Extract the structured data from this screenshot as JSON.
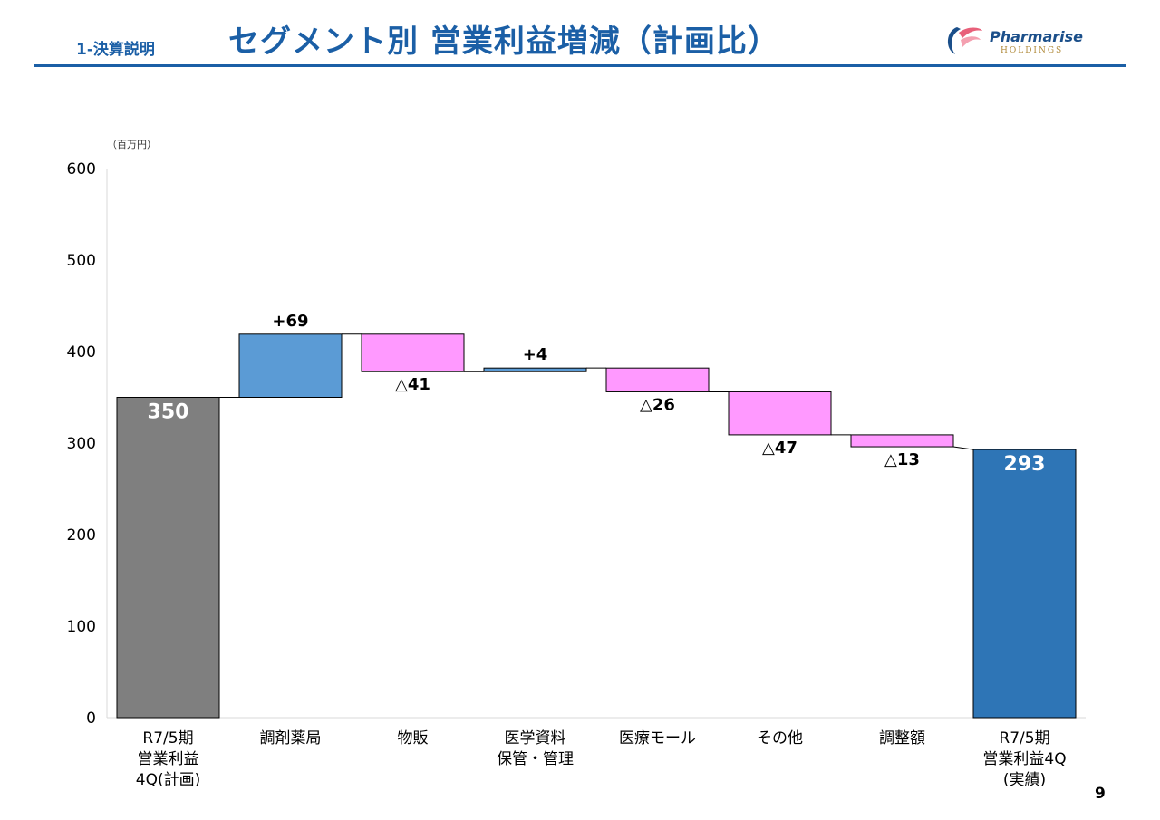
{
  "header": {
    "section": "1-決算説明",
    "title": "セグメント別 営業利益増減（計画比）"
  },
  "logo": {
    "name": "Pharmarise",
    "sub": "HOLDINGS"
  },
  "page_number": "9",
  "colors": {
    "brand": "#1b5fa6",
    "start": "#7f7f7f",
    "increase": "#5b9bd5",
    "decrease": "#ff99ff",
    "end": "#2e75b6"
  },
  "chart_data": {
    "type": "waterfall",
    "unit": "（百万円）",
    "ylim": [
      0,
      600
    ],
    "yticks": [
      0,
      100,
      200,
      300,
      400,
      500,
      600
    ],
    "categories": [
      [
        "R7/5期",
        "営業利益",
        "4Q(計画)"
      ],
      [
        "調剤薬局"
      ],
      [
        "物販"
      ],
      [
        "医学資料",
        "保管・管理"
      ],
      [
        "医療モール"
      ],
      [
        "その他"
      ],
      [
        "調整額"
      ],
      [
        "R7/5期",
        "営業利益4Q",
        "(実績)"
      ]
    ],
    "values": [
      350,
      69,
      -41,
      4,
      -26,
      -47,
      -13,
      293
    ],
    "kinds": [
      "total",
      "delta",
      "delta",
      "delta",
      "delta",
      "delta",
      "delta",
      "total"
    ],
    "labels": [
      "350",
      "+69",
      "△41",
      "+4",
      "△26",
      "△47",
      "△13",
      "293"
    ]
  }
}
